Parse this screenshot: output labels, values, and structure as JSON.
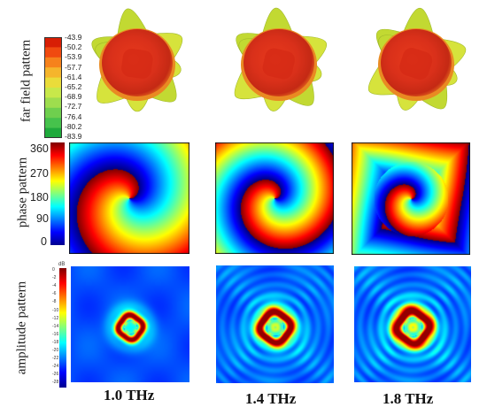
{
  "row_labels": {
    "far_field": "far field pattern",
    "phase": "phase pattern",
    "amplitude": "amplitude pattern"
  },
  "far_field_colorbar": {
    "ticks": [
      "-43.9",
      "-50.2",
      "-53.9",
      "-57.7",
      "-61.4",
      "-65.2",
      "-68.9",
      "-72.7",
      "-76.4",
      "-80.2",
      "-83.9"
    ],
    "colors": [
      "#d81e05",
      "#f04a10",
      "#f6821c",
      "#f5b52c",
      "#eadc3a",
      "#c8e84a",
      "#9edd4e",
      "#6fcf4e",
      "#46c24c",
      "#1faa3c"
    ]
  },
  "phase_colorbar": {
    "ticks": [
      "360",
      "270",
      "180",
      "90",
      "0"
    ]
  },
  "amplitude_colorbar": {
    "unit": "dB",
    "ticks": [
      "0",
      "-2",
      "-4",
      "-6",
      "-8",
      "-10",
      "-12",
      "-14",
      "-16",
      "-18",
      "-20",
      "-22",
      "-24",
      "-26",
      "-28"
    ]
  },
  "columns": [
    {
      "freq": "1.0 THz"
    },
    {
      "freq": "1.4 THz"
    },
    {
      "freq": "1.8 THz"
    }
  ]
}
